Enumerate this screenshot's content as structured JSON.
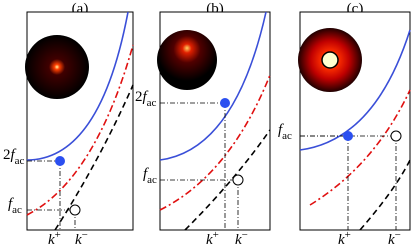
{
  "panels": [
    {
      "label": "(a)",
      "levels": [
        {
          "coef": "2",
          "symbol": "f",
          "subscript": "ac"
        },
        {
          "symbol": "f",
          "subscript": "ac"
        }
      ],
      "k_labels": [
        {
          "symbol": "k",
          "superscript": "+"
        },
        {
          "symbol": "k",
          "superscript": "−"
        }
      ]
    },
    {
      "label": "(b)",
      "levels": [
        {
          "coef": "2",
          "symbol": "f",
          "subscript": "ac"
        },
        {
          "symbol": "f",
          "subscript": "ac"
        }
      ],
      "k_labels": [
        {
          "symbol": "k",
          "superscript": "+"
        },
        {
          "symbol": "k",
          "superscript": "−"
        }
      ]
    },
    {
      "label": "(c)",
      "levels": [
        {
          "symbol": "f",
          "subscript": "ac"
        }
      ],
      "k_labels": [
        {
          "symbol": "k",
          "superscript": "+"
        },
        {
          "symbol": "k",
          "superscript": "−"
        }
      ]
    }
  ]
}
